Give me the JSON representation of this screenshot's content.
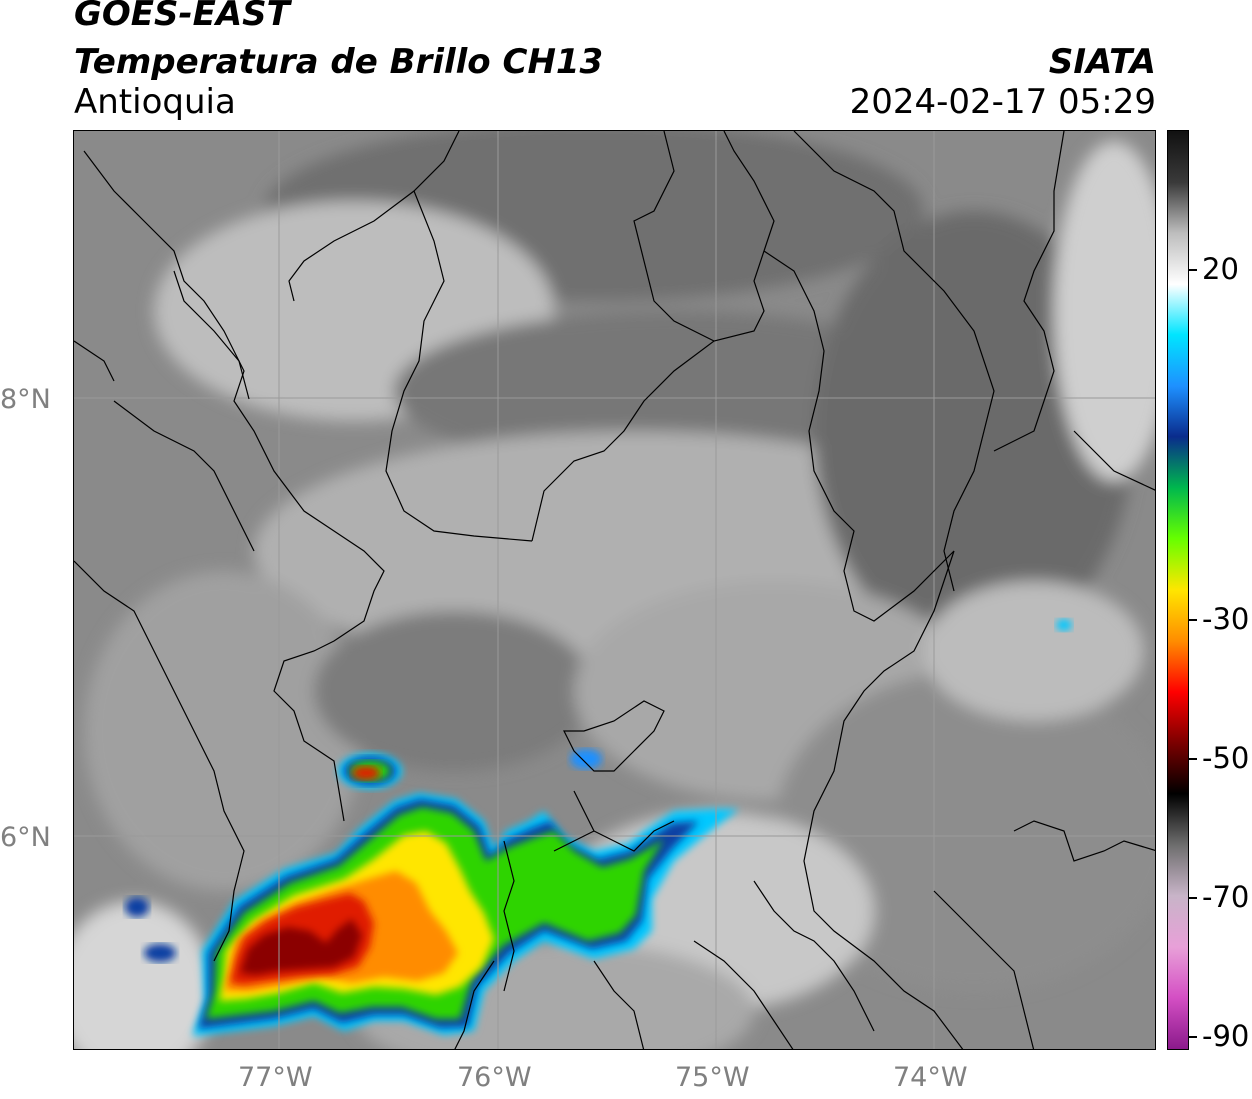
{
  "header": {
    "satellite": "GOES-EAST",
    "product": "Temperatura de Brillo CH13",
    "region": "Antioquia",
    "organization": "SIATA",
    "timestamp": "2024-02-17 05:29"
  },
  "map": {
    "lat_labels": [
      "8°N",
      "6°N"
    ],
    "lon_labels": [
      "77°W",
      "76°W",
      "75°W",
      "74°W"
    ]
  },
  "colorbar": {
    "tick_labels": [
      "20",
      "-30",
      "-50",
      "-70",
      "-90"
    ],
    "gradient_stops": [
      "#8b1a8b",
      "#d44fc4",
      "#e8a0d8",
      "#c8b4c8",
      "#6e6e6e",
      "#000000",
      "#7a0000",
      "#ff0000",
      "#ff8c00",
      "#ffe600",
      "#66ff00",
      "#00b84d",
      "#0a2c8c",
      "#1e90ff",
      "#00e5ff",
      "#ffffff",
      "#bdbdbd",
      "#3a3a3a",
      "#111111"
    ]
  },
  "colors": {
    "cloud_dark": "#8b0000",
    "cloud_red": "#e01b00",
    "cloud_orange": "#ff8c00",
    "cloud_yellow": "#ffe600",
    "cloud_green": "#5ee300",
    "cloud_blue": "#0b3fa3",
    "cloud_cyan": "#00c8ff"
  }
}
